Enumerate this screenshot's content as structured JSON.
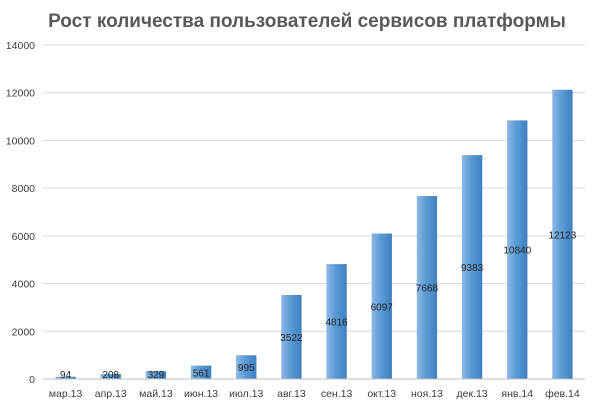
{
  "chart_data": {
    "type": "bar",
    "title": "Рост количества пользователей сервисов платформы",
    "xlabel": "",
    "ylabel": "",
    "categories": [
      "мар.13",
      "апр.13",
      "май.13",
      "июн.13",
      "июл.13",
      "авг.13",
      "сен.13",
      "окт.13",
      "ноя.13",
      "дек.13",
      "янв.14",
      "фев.14"
    ],
    "values": [
      94,
      208,
      329,
      561,
      995,
      3522,
      4816,
      6097,
      7668,
      9383,
      10840,
      12123
    ],
    "ylim": [
      0,
      14000
    ],
    "yticks": [
      0,
      2000,
      4000,
      6000,
      8000,
      10000,
      12000,
      14000
    ],
    "grid": true,
    "legend": "none",
    "colors": {
      "bar_light": "#8db8e6",
      "bar_main": "#5b9bd5",
      "bar_dark": "#3f7fc0"
    }
  }
}
